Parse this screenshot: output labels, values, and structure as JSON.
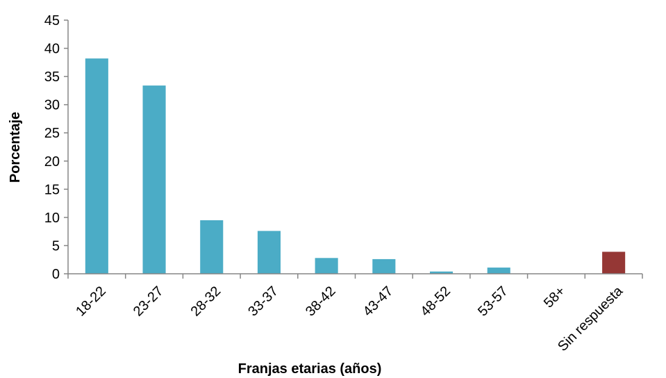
{
  "chart_data": {
    "type": "bar",
    "title": "",
    "xlabel": "Franjas etarias (años)",
    "ylabel": "Porcentaje",
    "ylim": [
      0,
      45
    ],
    "yticks": [
      0,
      5,
      10,
      15,
      20,
      25,
      30,
      35,
      40,
      45
    ],
    "grid": false,
    "legend": "none",
    "categories": [
      "18-22",
      "23-27",
      "28-32",
      "33-37",
      "38-42",
      "43-47",
      "48-52",
      "53-57",
      "58+",
      "Sin respuesta"
    ],
    "values": [
      38.2,
      33.4,
      9.5,
      7.6,
      2.8,
      2.6,
      0.4,
      1.1,
      0,
      3.9
    ],
    "colors": [
      "#4bacc6",
      "#4bacc6",
      "#4bacc6",
      "#4bacc6",
      "#4bacc6",
      "#4bacc6",
      "#4bacc6",
      "#4bacc6",
      "#4bacc6",
      "#953735"
    ]
  }
}
